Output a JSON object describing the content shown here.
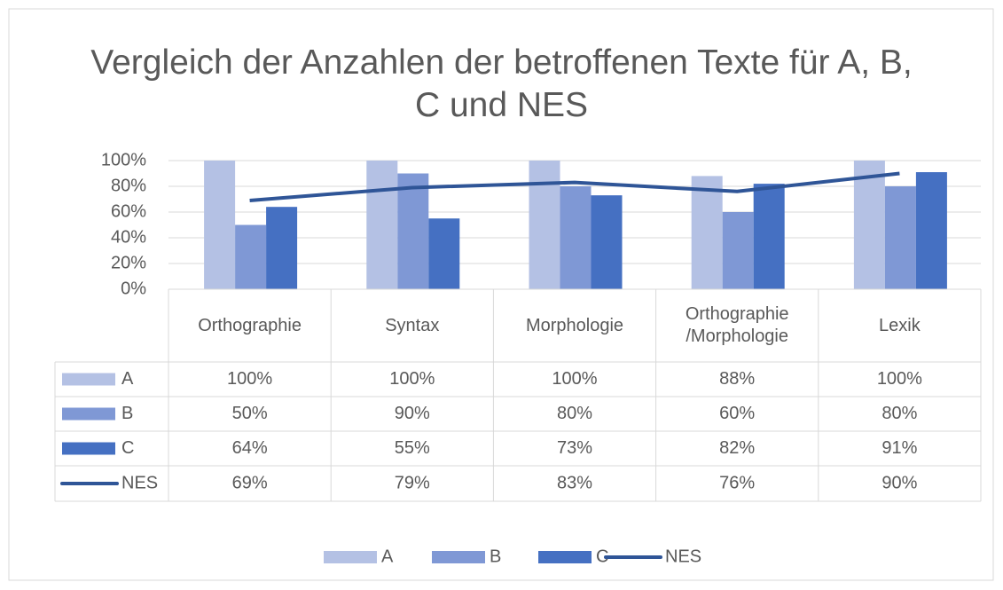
{
  "chart_data": {
    "type": "bar",
    "title": "Vergleich der Anzahlen der betroffenen Texte für A, B, C und NES",
    "categories": [
      "Orthographie",
      "Syntax",
      "Morphologie",
      "Orthographie /Morphologie",
      "Lexik"
    ],
    "series": [
      {
        "name": "A",
        "type": "bar",
        "color": "#b4c1e4",
        "values": [
          100,
          100,
          100,
          88,
          100
        ],
        "value_labels": [
          "100%",
          "100%",
          "100%",
          "88%",
          "100%"
        ]
      },
      {
        "name": "B",
        "type": "bar",
        "color": "#7f98d5",
        "values": [
          50,
          90,
          80,
          60,
          80
        ],
        "value_labels": [
          "50%",
          "90%",
          "80%",
          "60%",
          "80%"
        ]
      },
      {
        "name": "C",
        "type": "bar",
        "color": "#4570c2",
        "values": [
          64,
          55,
          73,
          82,
          91
        ],
        "value_labels": [
          "64%",
          "55%",
          "73%",
          "82%",
          "91%"
        ]
      },
      {
        "name": "NES",
        "type": "line",
        "color": "#2f5597",
        "values": [
          69,
          79,
          83,
          76,
          90
        ],
        "value_labels": [
          "69%",
          "79%",
          "83%",
          "76%",
          "90%"
        ]
      }
    ],
    "ylim": [
      0,
      100
    ],
    "yticks": [
      {
        "value": 0,
        "label": "0%"
      },
      {
        "value": 20,
        "label": "20%"
      },
      {
        "value": 40,
        "label": "40%"
      },
      {
        "value": 60,
        "label": "60%"
      },
      {
        "value": 80,
        "label": "80%"
      },
      {
        "value": 100,
        "label": "100%"
      }
    ],
    "grid": true,
    "legend": "bottom"
  }
}
